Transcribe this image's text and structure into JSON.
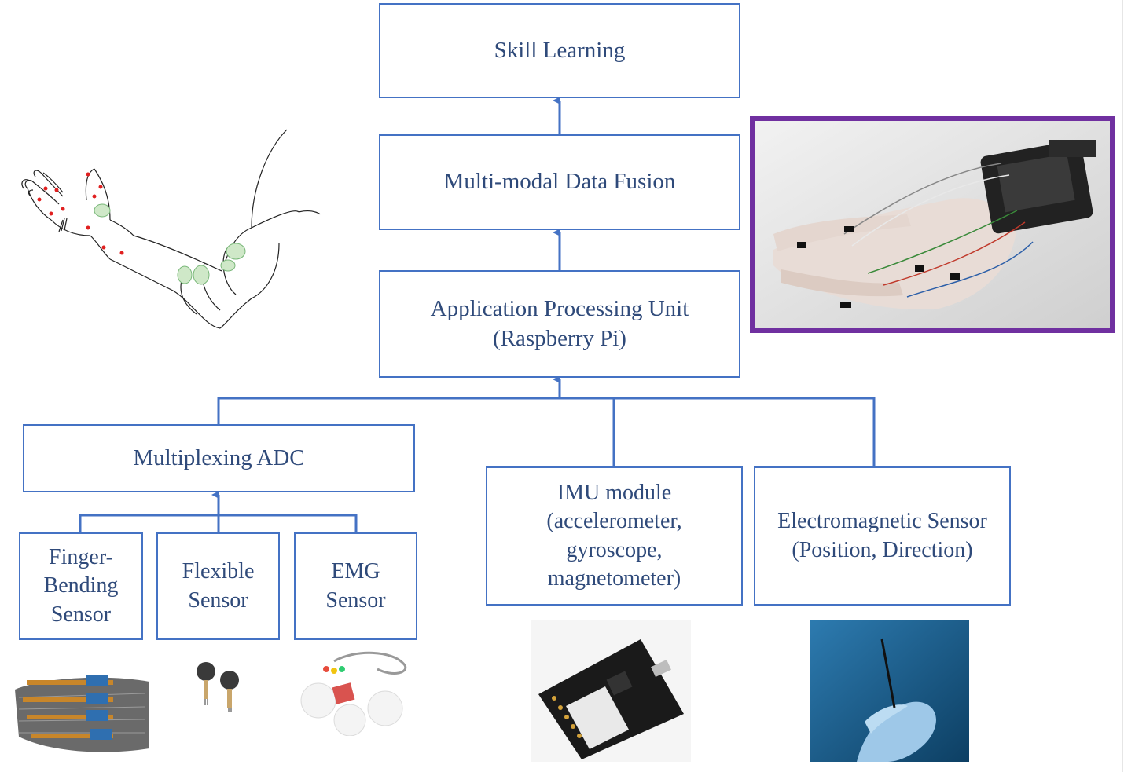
{
  "nodes": {
    "skill_learning": "Skill Learning",
    "data_fusion": "Multi-modal Data Fusion",
    "app_processing": "Application Processing Unit\n(Raspberry Pi)",
    "multiplexing_adc": "Multiplexing ADC",
    "finger_bending": "Finger-\nBending\nSensor",
    "flexible_sensor": "Flexible\nSensor",
    "emg_sensor": "EMG\nSensor",
    "imu_module": "IMU module\n(accelerometer,\ngyroscope,\nmagnetometer)",
    "em_sensor": "Electromagnetic Sensor\n(Position, Direction)"
  },
  "images": {
    "arm_sketch": "arm-sketch-illustration",
    "glove_photo": "data-glove-photo",
    "finger_bending_photo": "finger-bending-sensor-photo",
    "flexible_photo": "flexible-sensor-photo",
    "emg_photo": "emg-sensor-photo",
    "imu_photo": "imu-module-photo",
    "em_photo": "electromagnetic-sensor-photo"
  },
  "colors": {
    "box_border": "#4472c4",
    "connector": "#4472c4",
    "text": "#2f4a7a",
    "glove_frame": "#7030a0",
    "emg_tint": "#d9534f"
  }
}
